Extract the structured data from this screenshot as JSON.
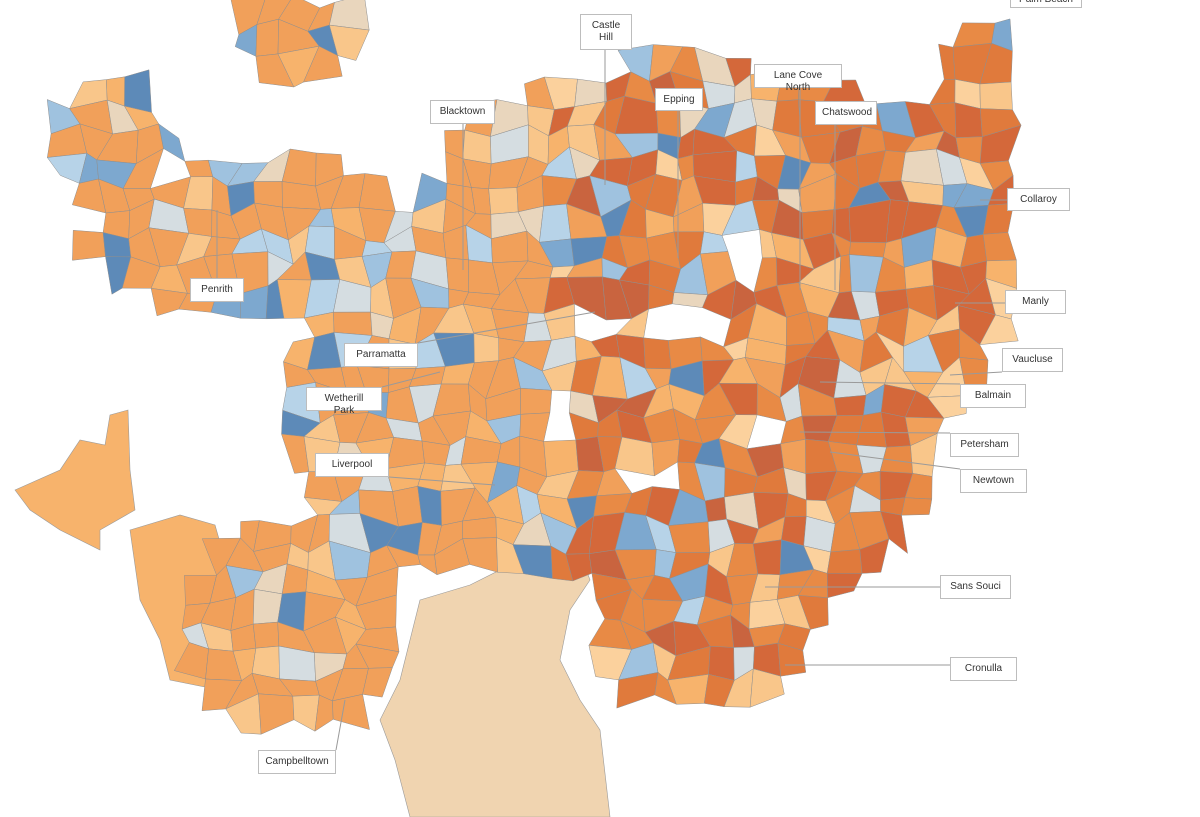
{
  "labels": [
    {
      "text": "Palm Beach"
    },
    {
      "text": "Castle Hill"
    },
    {
      "text": "Lane Cove North"
    },
    {
      "text": "Epping"
    },
    {
      "text": "Chatswood"
    },
    {
      "text": "Blacktown"
    },
    {
      "text": "Collaroy"
    },
    {
      "text": "Penrith"
    },
    {
      "text": "Manly"
    },
    {
      "text": "Parramatta"
    },
    {
      "text": "Vaucluse"
    },
    {
      "text": "Wetherill Park"
    },
    {
      "text": "Balmain"
    },
    {
      "text": "Petersham"
    },
    {
      "text": "Liverpool"
    },
    {
      "text": "Newtown"
    },
    {
      "text": "Sans Souci"
    },
    {
      "text": "Cronulla"
    },
    {
      "text": "Campbelltown"
    }
  ]
}
